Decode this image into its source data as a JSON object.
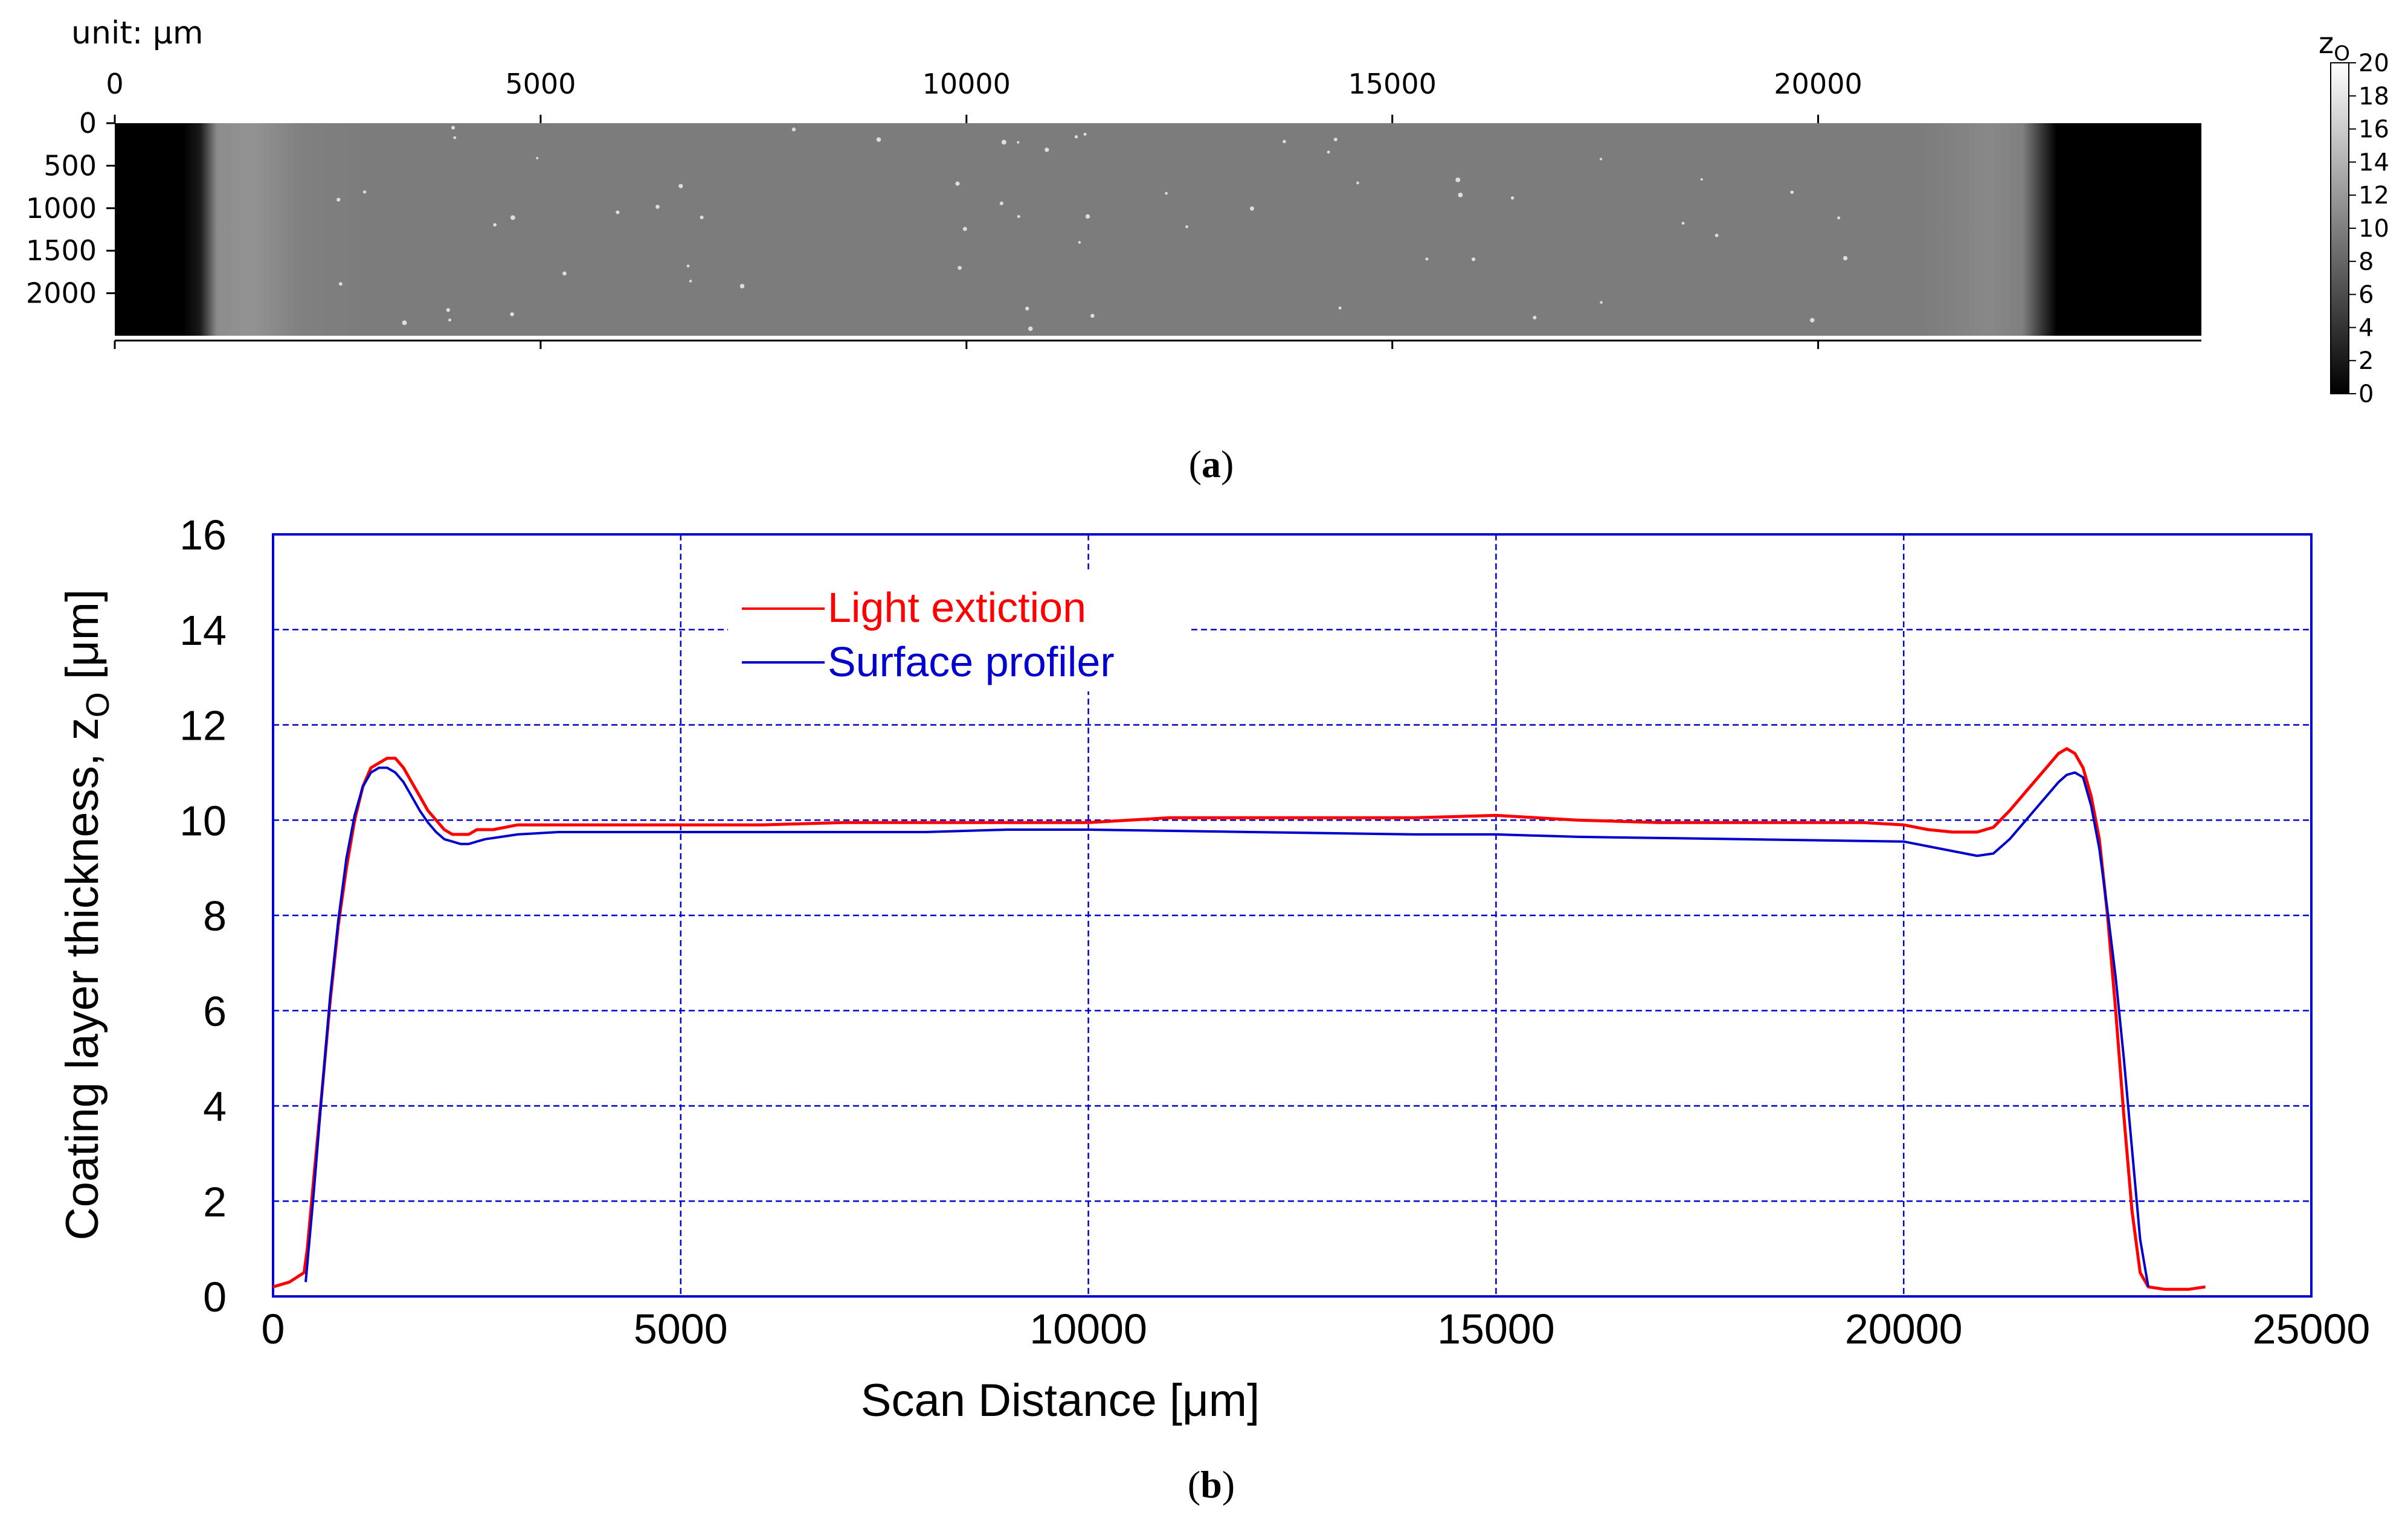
{
  "panel_a_label": "a",
  "panel_b_label": "b",
  "chart_data": [
    {
      "type": "heatmap",
      "id": "panel-a",
      "unit_label": "unit: μm",
      "x_ticks": [
        "0",
        "5000",
        "10000",
        "15000",
        "20000"
      ],
      "x_tick_values": [
        0,
        5000,
        10000,
        15000,
        20000
      ],
      "xlim": [
        0,
        24500
      ],
      "y_ticks": [
        "0",
        "500",
        "1000",
        "1500",
        "2000"
      ],
      "y_tick_values": [
        0,
        500,
        1000,
        1500,
        2000
      ],
      "ylim": [
        0,
        2500
      ],
      "colorbar": {
        "label": "z",
        "label_subscript": "O",
        "ticks": [
          "0",
          "2",
          "4",
          "6",
          "8",
          "10",
          "12",
          "14",
          "16",
          "18",
          "20"
        ],
        "tick_values": [
          0,
          2,
          4,
          6,
          8,
          10,
          12,
          14,
          16,
          18,
          20
        ],
        "range": [
          0,
          20
        ],
        "colormap": "gray"
      },
      "profile_along_x": {
        "x": [
          0,
          800,
          1000,
          1200,
          1600,
          2200,
          3000,
          20000,
          21200,
          22000,
          22400,
          22800,
          24500
        ],
        "z": [
          0,
          0,
          2,
          11,
          11.5,
          10,
          9.7,
          9.7,
          9.7,
          10.7,
          10,
          0,
          0
        ]
      }
    },
    {
      "type": "line",
      "id": "panel-b",
      "xlabel": "Scan Distance [μm]",
      "ylabel": "Coating layer thickness, z",
      "ylabel_subscript": "O",
      "ylabel_unit": " [μm]",
      "xlim": [
        0,
        25000
      ],
      "ylim": [
        0,
        16
      ],
      "x_ticks": [
        "0",
        "5000",
        "10000",
        "15000",
        "20000",
        "25000"
      ],
      "x_tick_values": [
        0,
        5000,
        10000,
        15000,
        20000,
        25000
      ],
      "y_ticks": [
        "0",
        "2",
        "4",
        "6",
        "8",
        "10",
        "12",
        "14",
        "16"
      ],
      "y_tick_values": [
        0,
        2,
        4,
        6,
        8,
        10,
        12,
        14,
        16
      ],
      "grid": true,
      "legend_position": "top-left",
      "series": [
        {
          "name": "Light extiction",
          "color": "#ff0000",
          "x": [
            0,
            200,
            380,
            420,
            500,
            600,
            700,
            800,
            900,
            1000,
            1100,
            1200,
            1300,
            1400,
            1500,
            1600,
            1700,
            1800,
            1900,
            2000,
            2100,
            2200,
            2300,
            2400,
            2500,
            2700,
            3000,
            3500,
            4000,
            5000,
            6000,
            7000,
            8000,
            9000,
            10000,
            11000,
            12000,
            13000,
            14000,
            15000,
            16000,
            17000,
            18000,
            19000,
            19500,
            20000,
            20300,
            20600,
            20900,
            21100,
            21300,
            21500,
            21700,
            21900,
            22000,
            22100,
            22200,
            22300,
            22400,
            22500,
            22600,
            22700,
            22800,
            22900,
            23000,
            23200,
            23500,
            23700
          ],
          "y": [
            0.2,
            0.3,
            0.5,
            1.0,
            2.5,
            4.3,
            6.2,
            7.8,
            9.0,
            10.0,
            10.7,
            11.1,
            11.2,
            11.3,
            11.3,
            11.1,
            10.8,
            10.5,
            10.2,
            10.0,
            9.8,
            9.7,
            9.7,
            9.7,
            9.8,
            9.8,
            9.9,
            9.9,
            9.9,
            9.9,
            9.9,
            9.95,
            9.95,
            9.95,
            9.95,
            10.05,
            10.05,
            10.05,
            10.05,
            10.1,
            10.0,
            9.95,
            9.95,
            9.95,
            9.95,
            9.9,
            9.8,
            9.75,
            9.75,
            9.85,
            10.2,
            10.6,
            11.0,
            11.4,
            11.5,
            11.4,
            11.1,
            10.5,
            9.6,
            8.0,
            6.0,
            3.8,
            1.8,
            0.5,
            0.2,
            0.15,
            0.15,
            0.2
          ]
        },
        {
          "name": "Surface profiler",
          "color": "#0000cc",
          "x": [
            400,
            500,
            600,
            700,
            800,
            900,
            1000,
            1100,
            1200,
            1300,
            1400,
            1500,
            1600,
            1700,
            1800,
            1900,
            2000,
            2100,
            2200,
            2300,
            2400,
            2500,
            2600,
            2800,
            3000,
            3500,
            4000,
            5000,
            6000,
            7000,
            8000,
            9000,
            10000,
            12000,
            14000,
            15000,
            16000,
            18000,
            20000,
            20300,
            20600,
            20900,
            21100,
            21300,
            21500,
            21700,
            21900,
            22000,
            22100,
            22200,
            22300,
            22400,
            22500,
            22600,
            22700,
            22800,
            22900,
            23000
          ],
          "y": [
            0.3,
            2.2,
            4.3,
            6.3,
            7.9,
            9.2,
            10.1,
            10.7,
            11.0,
            11.1,
            11.1,
            11.0,
            10.8,
            10.5,
            10.2,
            9.95,
            9.75,
            9.6,
            9.55,
            9.5,
            9.5,
            9.55,
            9.6,
            9.65,
            9.7,
            9.75,
            9.75,
            9.75,
            9.75,
            9.75,
            9.75,
            9.8,
            9.8,
            9.75,
            9.7,
            9.7,
            9.65,
            9.6,
            9.55,
            9.45,
            9.35,
            9.25,
            9.3,
            9.6,
            10.0,
            10.4,
            10.8,
            10.95,
            11.0,
            10.9,
            10.3,
            9.4,
            8.1,
            6.7,
            5.0,
            3.1,
            1.2,
            0.2
          ]
        }
      ]
    }
  ]
}
